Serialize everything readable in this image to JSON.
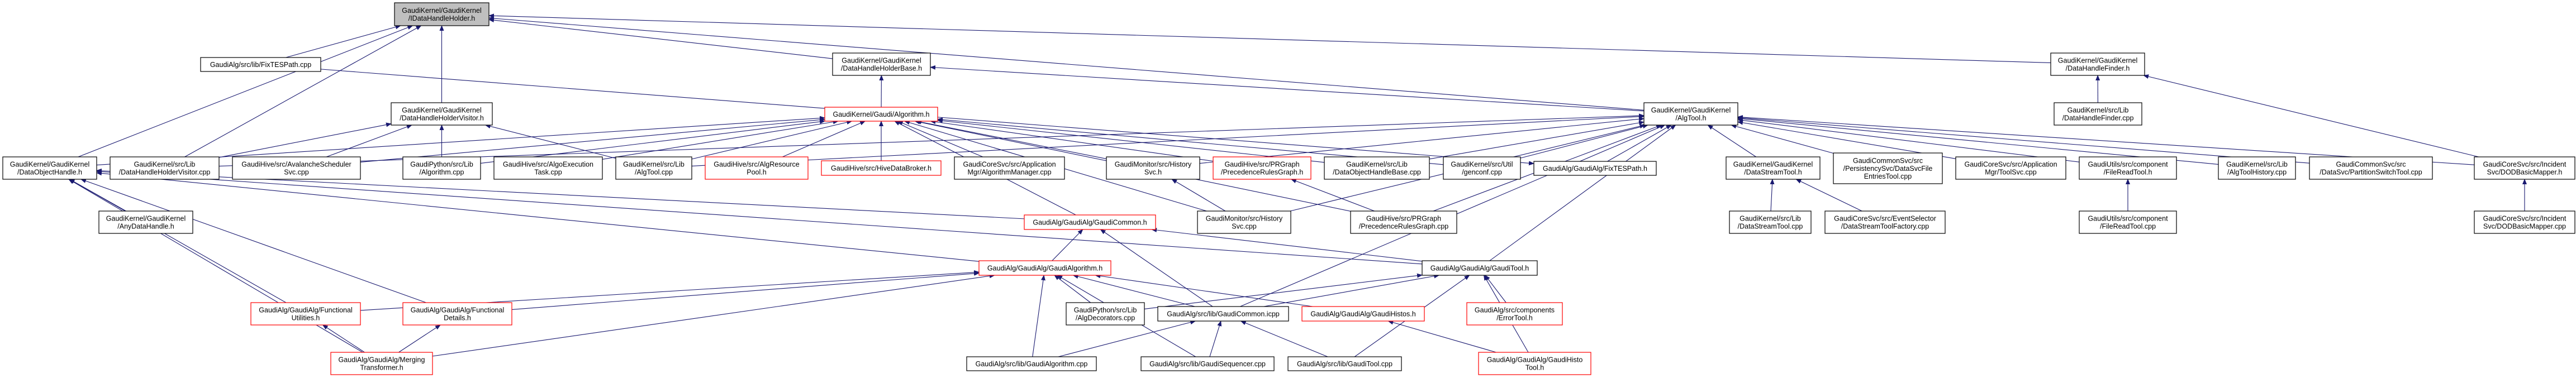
{
  "graph": {
    "colors": {
      "edge": "#191970",
      "highlight_border": "#ff0000",
      "focus_fill": "#bfbfbf",
      "border": "#000000"
    },
    "nodes": [
      {
        "id": "idh",
        "style": "gray",
        "lines": [
          "GaudiKernel/GaudiKernel",
          "/IDataHandleHolder.h"
        ]
      },
      {
        "id": "fixcpp",
        "style": "normal",
        "lines": [
          "GaudiAlg/src/lib/FixTESPath.cpp"
        ]
      },
      {
        "id": "dhhbase",
        "style": "normal",
        "lines": [
          "GaudiKernel/GaudiKernel",
          "/DataHandleHolderBase.h"
        ]
      },
      {
        "id": "dhfinder",
        "style": "normal",
        "lines": [
          "GaudiKernel/GaudiKernel",
          "/DataHandleFinder.h"
        ]
      },
      {
        "id": "dhhvis",
        "style": "normal",
        "lines": [
          "GaudiKernel/GaudiKernel",
          "/DataHandleHolderVisitor.h"
        ]
      },
      {
        "id": "algh",
        "style": "red",
        "lines": [
          "GaudiKernel/Gaudi/Algorithm.h"
        ]
      },
      {
        "id": "algtoolh",
        "style": "normal",
        "lines": [
          "GaudiKernel/GaudiKernel",
          "/AlgTool.h"
        ]
      },
      {
        "id": "dhfcpp",
        "style": "normal",
        "lines": [
          "GaudiKernel/src/Lib",
          "/DataHandleFinder.cpp"
        ]
      },
      {
        "id": "doh",
        "style": "normal",
        "lines": [
          "GaudiKernel/GaudiKernel",
          "/DataObjectHandle.h"
        ]
      },
      {
        "id": "dhhviscpp",
        "style": "normal",
        "lines": [
          "GaudiKernel/src/Lib",
          "/DataHandleHolderVisitor.cpp"
        ]
      },
      {
        "id": "avalanche",
        "style": "normal",
        "lines": [
          "GaudiHive/src/AvalancheScheduler",
          "Svc.cpp"
        ]
      },
      {
        "id": "gpalgcpp",
        "style": "normal",
        "lines": [
          "GaudiPython/src/Lib",
          "/Algorithm.cpp"
        ]
      },
      {
        "id": "algoexec",
        "style": "normal",
        "lines": [
          "GaudiHive/src/AlgoExecution",
          "Task.cpp"
        ]
      },
      {
        "id": "algtoolcpp",
        "style": "normal",
        "lines": [
          "GaudiKernel/src/Lib",
          "/AlgTool.cpp"
        ]
      },
      {
        "id": "algres",
        "style": "red",
        "lines": [
          "GaudiHive/src/AlgResource",
          "Pool.h"
        ]
      },
      {
        "id": "hivebroker",
        "style": "red",
        "lines": [
          "GaudiHive/src/HiveDataBroker.h"
        ]
      },
      {
        "id": "algmgr",
        "style": "normal",
        "lines": [
          "GaudiCoreSvc/src/Application",
          "Mgr/AlgorithmManager.cpp"
        ]
      },
      {
        "id": "histsvch",
        "style": "normal",
        "lines": [
          "GaudiMonitor/src/History",
          "Svc.h"
        ]
      },
      {
        "id": "prgh",
        "style": "red",
        "lines": [
          "GaudiHive/src/PRGraph",
          "/PrecedenceRulesGraph.h"
        ]
      },
      {
        "id": "dohbase",
        "style": "normal",
        "lines": [
          "GaudiKernel/src/Lib",
          "/DataObjectHandleBase.cpp"
        ]
      },
      {
        "id": "genconf",
        "style": "normal",
        "lines": [
          "GaudiKernel/src/Util",
          "/genconf.cpp"
        ]
      },
      {
        "id": "fixh",
        "style": "normal",
        "lines": [
          "GaudiAlg/GaudiAlg/FixTESPath.h"
        ]
      },
      {
        "id": "dsth",
        "style": "normal",
        "lines": [
          "GaudiKernel/GaudiKernel",
          "/DataStreamTool.h"
        ]
      },
      {
        "id": "dsfe",
        "style": "normal",
        "lines": [
          "GaudiCommonSvc/src",
          "/PersistencySvc/DataSvcFile",
          "EntriesTool.cpp"
        ]
      },
      {
        "id": "toolsvc",
        "style": "normal",
        "lines": [
          "GaudiCoreSvc/src/Application",
          "Mgr/ToolSvc.cpp"
        ]
      },
      {
        "id": "frth",
        "style": "normal",
        "lines": [
          "GaudiUtils/src/component",
          "/FileReadTool.h"
        ]
      },
      {
        "id": "athist",
        "style": "normal",
        "lines": [
          "GaudiKernel/src/Lib",
          "/AlgToolHistory.cpp"
        ]
      },
      {
        "id": "pst",
        "style": "normal",
        "lines": [
          "GaudiCommonSvc/src",
          "/DataSvc/PartitionSwitchTool.cpp"
        ]
      },
      {
        "id": "dodh",
        "style": "normal",
        "lines": [
          "GaudiCoreSvc/src/Incident",
          "Svc/DODBasicMapper.h"
        ]
      },
      {
        "id": "anydh",
        "style": "normal",
        "lines": [
          "GaudiKernel/GaudiKernel",
          "/AnyDataHandle.h"
        ]
      },
      {
        "id": "gch",
        "style": "red",
        "lines": [
          "GaudiAlg/GaudiAlg/GaudiCommon.h"
        ]
      },
      {
        "id": "histsvccpp",
        "style": "normal",
        "lines": [
          "GaudiMonitor/src/History",
          "Svc.cpp"
        ]
      },
      {
        "id": "prgcpp",
        "style": "normal",
        "lines": [
          "GaudiHive/src/PRGraph",
          "/PrecedenceRulesGraph.cpp"
        ]
      },
      {
        "id": "dstcpp",
        "style": "normal",
        "lines": [
          "GaudiKernel/src/Lib",
          "/DataStreamTool.cpp"
        ]
      },
      {
        "id": "dstf",
        "style": "normal",
        "lines": [
          "GaudiCoreSvc/src/EventSelector",
          "/DataStreamToolFactory.cpp"
        ]
      },
      {
        "id": "frtcpp",
        "style": "normal",
        "lines": [
          "GaudiUtils/src/component",
          "/FileReadTool.cpp"
        ]
      },
      {
        "id": "dodcpp",
        "style": "normal",
        "lines": [
          "GaudiCoreSvc/src/Incident",
          "Svc/DODBasicMapper.cpp"
        ]
      },
      {
        "id": "gah",
        "style": "red",
        "lines": [
          "GaudiAlg/GaudiAlg/GaudiAlgorithm.h"
        ]
      },
      {
        "id": "gth",
        "style": "normal",
        "lines": [
          "GaudiAlg/GaudiAlg/GaudiTool.h"
        ]
      },
      {
        "id": "fu",
        "style": "red",
        "lines": [
          "GaudiAlg/GaudiAlg/Functional",
          "Utilities.h"
        ]
      },
      {
        "id": "fd",
        "style": "red",
        "lines": [
          "GaudiAlg/GaudiAlg/Functional",
          "Details.h"
        ]
      },
      {
        "id": "algdec",
        "style": "normal",
        "lines": [
          "GaudiPython/src/Lib",
          "/AlgDecorators.cpp"
        ]
      },
      {
        "id": "gcicpp",
        "style": "normal",
        "lines": [
          "GaudiAlg/src/lib/GaudiCommon.icpp"
        ]
      },
      {
        "id": "ghh",
        "style": "red",
        "lines": [
          "GaudiAlg/GaudiAlg/GaudiHistos.h"
        ]
      },
      {
        "id": "errt",
        "style": "red",
        "lines": [
          "GaudiAlg/src/components",
          "/ErrorTool.h"
        ]
      },
      {
        "id": "mt",
        "style": "red",
        "lines": [
          "GaudiAlg/GaudiAlg/Merging",
          "Transformer.h"
        ]
      },
      {
        "id": "gacpp",
        "style": "normal",
        "lines": [
          "GaudiAlg/src/lib/GaudiAlgorithm.cpp"
        ]
      },
      {
        "id": "gseq",
        "style": "normal",
        "lines": [
          "GaudiAlg/src/lib/GaudiSequencer.cpp"
        ]
      },
      {
        "id": "gtcpp",
        "style": "normal",
        "lines": [
          "GaudiAlg/src/lib/GaudiTool.cpp"
        ]
      },
      {
        "id": "ghtool",
        "style": "red",
        "lines": [
          "GaudiAlg/GaudiAlg/GaudiHisto",
          "Tool.h"
        ]
      }
    ],
    "edges": [
      [
        "fixcpp",
        "idh"
      ],
      [
        "doh",
        "idh"
      ],
      [
        "dhhvis",
        "idh"
      ],
      [
        "dhhbase",
        "idh"
      ],
      [
        "algtoolh",
        "idh"
      ],
      [
        "dhfinder",
        "idh"
      ],
      [
        "dhhviscpp",
        "idh"
      ],
      [
        "algh",
        "dhhbase"
      ],
      [
        "algtoolh",
        "dhhbase"
      ],
      [
        "dhhviscpp",
        "dhhvis"
      ],
      [
        "avalanche",
        "dhhvis"
      ],
      [
        "gpalgcpp",
        "dhhvis"
      ],
      [
        "algtoolcpp",
        "dhhvis"
      ],
      [
        "doh",
        "algh"
      ],
      [
        "avalanche",
        "algh"
      ],
      [
        "gpalgcpp",
        "algh"
      ],
      [
        "algoexec",
        "algh"
      ],
      [
        "algtoolcpp",
        "algh"
      ],
      [
        "algres",
        "algh"
      ],
      [
        "hivebroker",
        "algh"
      ],
      [
        "algmgr",
        "algh"
      ],
      [
        "histsvch",
        "algh"
      ],
      [
        "prgh",
        "algh"
      ],
      [
        "dohbase",
        "algh"
      ],
      [
        "genconf",
        "algh"
      ],
      [
        "gch",
        "algh"
      ],
      [
        "histsvccpp",
        "algh"
      ],
      [
        "prgcpp",
        "algh"
      ],
      [
        "dhhviscpp",
        "algtoolh"
      ],
      [
        "algtoolcpp",
        "algtoolh"
      ],
      [
        "histsvch",
        "algtoolh"
      ],
      [
        "genconf",
        "algtoolh"
      ],
      [
        "dohbase",
        "algtoolh"
      ],
      [
        "fixh",
        "algtoolh"
      ],
      [
        "dsth",
        "algtoolh"
      ],
      [
        "dsfe",
        "algtoolh"
      ],
      [
        "toolsvc",
        "algtoolh"
      ],
      [
        "frth",
        "algtoolh"
      ],
      [
        "athist",
        "algtoolh"
      ],
      [
        "pst",
        "algtoolh"
      ],
      [
        "dodh",
        "algtoolh"
      ],
      [
        "gth",
        "algtoolh"
      ],
      [
        "gcicpp",
        "algtoolh"
      ],
      [
        "histsvccpp",
        "algtoolh"
      ],
      [
        "prgcpp",
        "algtoolh"
      ],
      [
        "dhfcpp",
        "dhfinder"
      ],
      [
        "dodh",
        "dhfinder"
      ],
      [
        "anydh",
        "doh"
      ],
      [
        "fu",
        "doh"
      ],
      [
        "fd",
        "doh"
      ],
      [
        "gch",
        "doh"
      ],
      [
        "gah",
        "doh"
      ],
      [
        "gth",
        "doh"
      ],
      [
        "mt",
        "doh"
      ],
      [
        "gah",
        "gch"
      ],
      [
        "gth",
        "gch"
      ],
      [
        "gcicpp",
        "gch"
      ],
      [
        "fu",
        "gah"
      ],
      [
        "fd",
        "gah"
      ],
      [
        "algdec",
        "gah"
      ],
      [
        "gcicpp",
        "gah"
      ],
      [
        "ghh",
        "gah"
      ],
      [
        "gacpp",
        "gah"
      ],
      [
        "gseq",
        "gah"
      ],
      [
        "mt",
        "gah"
      ],
      [
        "mt",
        "fu"
      ],
      [
        "mt",
        "fd"
      ],
      [
        "gacpp",
        "gcicpp"
      ],
      [
        "gseq",
        "gcicpp"
      ],
      [
        "gtcpp",
        "gcicpp"
      ],
      [
        "algdec",
        "gth"
      ],
      [
        "gcicpp",
        "gth"
      ],
      [
        "errt",
        "gth"
      ],
      [
        "ghtool",
        "gth"
      ],
      [
        "gtcpp",
        "gth"
      ],
      [
        "ghtool",
        "ghh"
      ],
      [
        "fixcpp",
        "fixh"
      ],
      [
        "histsvccpp",
        "histsvch"
      ],
      [
        "prgcpp",
        "prgh"
      ],
      [
        "dstcpp",
        "dsth"
      ],
      [
        "dstf",
        "dsth"
      ],
      [
        "frtcpp",
        "frth"
      ],
      [
        "dodcpp",
        "dodh"
      ]
    ]
  }
}
